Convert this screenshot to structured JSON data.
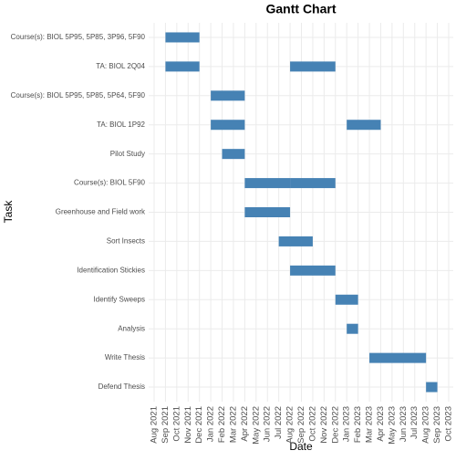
{
  "chart_data": {
    "type": "gantt",
    "title": "Gantt Chart",
    "x_label": "Date",
    "y_label": "Task",
    "color": "#4682b4",
    "grid": true,
    "xlim": [
      "2021-08",
      "2023-10"
    ],
    "xticks": [
      {
        "value": "2021-08",
        "label": "Aug 2021"
      },
      {
        "value": "2021-09",
        "label": "Sep 2021"
      },
      {
        "value": "2021-10",
        "label": "Oct 2021"
      },
      {
        "value": "2021-11",
        "label": "Nov 2021"
      },
      {
        "value": "2021-12",
        "label": "Dec 2021"
      },
      {
        "value": "2022-01",
        "label": "Jan 2022"
      },
      {
        "value": "2022-02",
        "label": "Feb 2022"
      },
      {
        "value": "2022-03",
        "label": "Mar 2022"
      },
      {
        "value": "2022-04",
        "label": "Apr 2022"
      },
      {
        "value": "2022-05",
        "label": "May 2022"
      },
      {
        "value": "2022-06",
        "label": "Jun 2022"
      },
      {
        "value": "2022-07",
        "label": "Jul 2022"
      },
      {
        "value": "2022-08",
        "label": "Aug 2022"
      },
      {
        "value": "2022-09",
        "label": "Sep 2022"
      },
      {
        "value": "2022-10",
        "label": "Oct 2022"
      },
      {
        "value": "2022-11",
        "label": "Nov 2022"
      },
      {
        "value": "2022-12",
        "label": "Dec 2022"
      },
      {
        "value": "2023-01",
        "label": "Jan 2023"
      },
      {
        "value": "2023-02",
        "label": "Feb 2023"
      },
      {
        "value": "2023-03",
        "label": "Mar 2023"
      },
      {
        "value": "2023-04",
        "label": "Apr 2023"
      },
      {
        "value": "2023-05",
        "label": "May 2023"
      },
      {
        "value": "2023-06",
        "label": "Jun 2023"
      },
      {
        "value": "2023-07",
        "label": "Jul 2023"
      },
      {
        "value": "2023-08",
        "label": "Aug 2023"
      },
      {
        "value": "2023-09",
        "label": "Sep 2023"
      },
      {
        "value": "2023-10",
        "label": "Oct 2023"
      }
    ],
    "tasks": [
      {
        "name": "Course(s): BIOL 5P95, 5P85, 3P96, 5F90",
        "bars": [
          {
            "start": "2021-09",
            "end": "2021-12"
          }
        ]
      },
      {
        "name": "TA: BIOL 2Q04",
        "bars": [
          {
            "start": "2021-09",
            "end": "2021-12"
          },
          {
            "start": "2022-08",
            "end": "2022-12"
          }
        ]
      },
      {
        "name": "Course(s): BIOL 5P95, 5P85, 5P64, 5F90",
        "bars": [
          {
            "start": "2022-01",
            "end": "2022-04"
          }
        ]
      },
      {
        "name": "TA: BIOL 1P92",
        "bars": [
          {
            "start": "2022-01",
            "end": "2022-04"
          },
          {
            "start": "2023-01",
            "end": "2023-04"
          }
        ]
      },
      {
        "name": "Pilot Study",
        "bars": [
          {
            "start": "2022-02",
            "end": "2022-04"
          }
        ]
      },
      {
        "name": "Course(s): BIOL 5F90",
        "bars": [
          {
            "start": "2022-04",
            "end": "2022-08"
          },
          {
            "start": "2022-08",
            "end": "2022-12"
          }
        ]
      },
      {
        "name": "Greenhouse and Field work",
        "bars": [
          {
            "start": "2022-04",
            "end": "2022-08"
          }
        ]
      },
      {
        "name": "Sort Insects",
        "bars": [
          {
            "start": "2022-07",
            "end": "2022-10"
          }
        ]
      },
      {
        "name": "Identification Stickies",
        "bars": [
          {
            "start": "2022-08",
            "end": "2022-12"
          }
        ]
      },
      {
        "name": "Identify Sweeps",
        "bars": [
          {
            "start": "2022-12",
            "end": "2023-02"
          }
        ]
      },
      {
        "name": "Analysis",
        "bars": [
          {
            "start": "2023-01",
            "end": "2023-02"
          }
        ]
      },
      {
        "name": "Write Thesis",
        "bars": [
          {
            "start": "2023-03",
            "end": "2023-08"
          }
        ]
      },
      {
        "name": "Defend Thesis",
        "bars": [
          {
            "start": "2023-08",
            "end": "2023-09"
          }
        ]
      }
    ]
  }
}
